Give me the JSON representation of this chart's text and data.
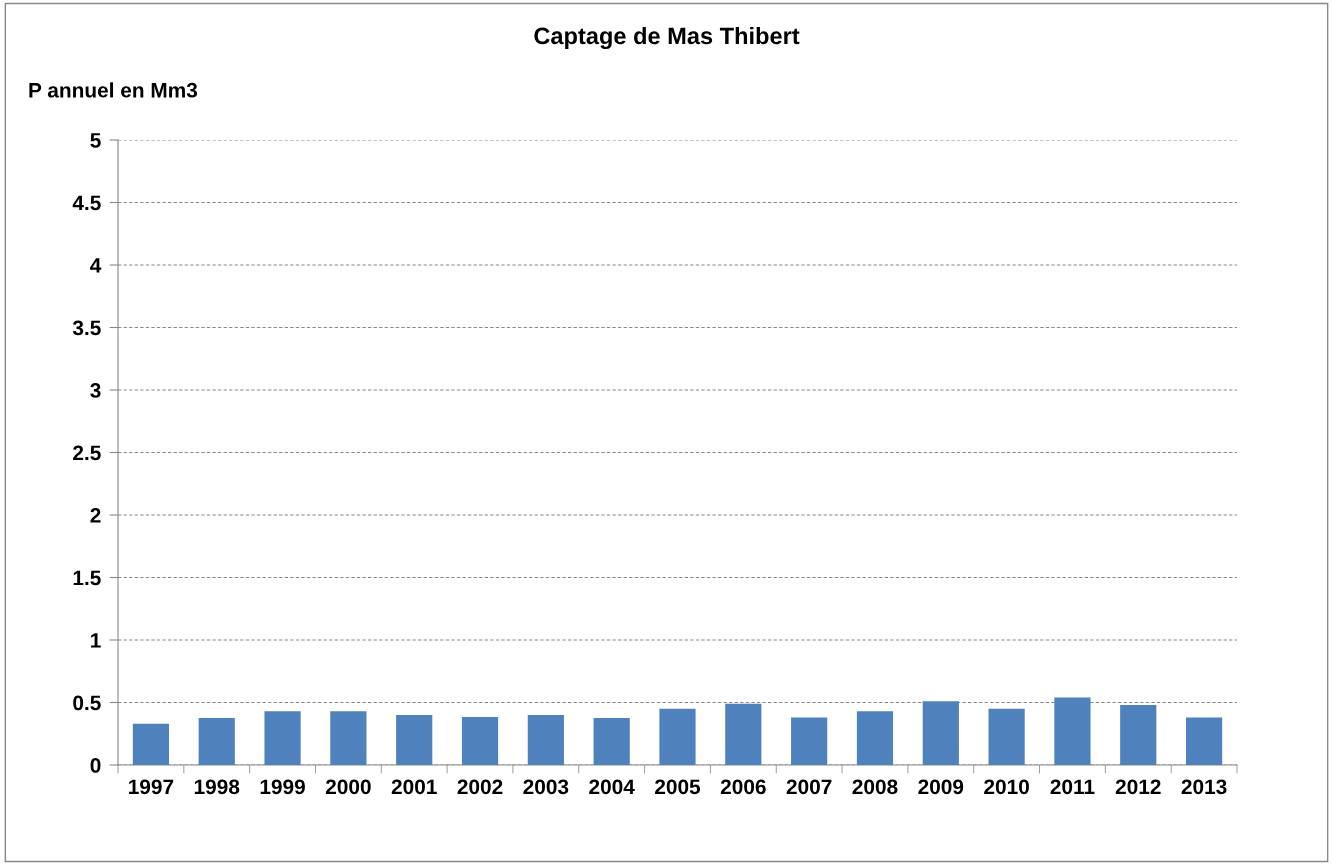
{
  "chart_data": {
    "type": "bar",
    "title": "Captage de Mas Thibert",
    "ylabel": "P annuel en Mm3",
    "categories": [
      "1997",
      "1998",
      "1999",
      "2000",
      "2001",
      "2002",
      "2003",
      "2004",
      "2005",
      "2006",
      "2007",
      "2008",
      "2009",
      "2010",
      "2011",
      "2012",
      "2013"
    ],
    "values": [
      0.33,
      0.375,
      0.43,
      0.43,
      0.4,
      0.385,
      0.4,
      0.375,
      0.45,
      0.49,
      0.38,
      0.43,
      0.51,
      0.45,
      0.54,
      0.48,
      0.38
    ],
    "color": "#4f81bd",
    "ylim": [
      0,
      5
    ],
    "yticks": [
      0,
      {
        "value": 0.5,
        "label": "0.5"
      },
      1,
      {
        "value": 1.5,
        "label": "1.5"
      },
      2,
      {
        "value": 2.5,
        "label": "2.5"
      },
      3,
      {
        "value": 3.5,
        "label": "3.5"
      },
      4,
      {
        "value": 4.5,
        "label": "4.5"
      },
      5
    ],
    "grid": "y",
    "legend": false
  }
}
